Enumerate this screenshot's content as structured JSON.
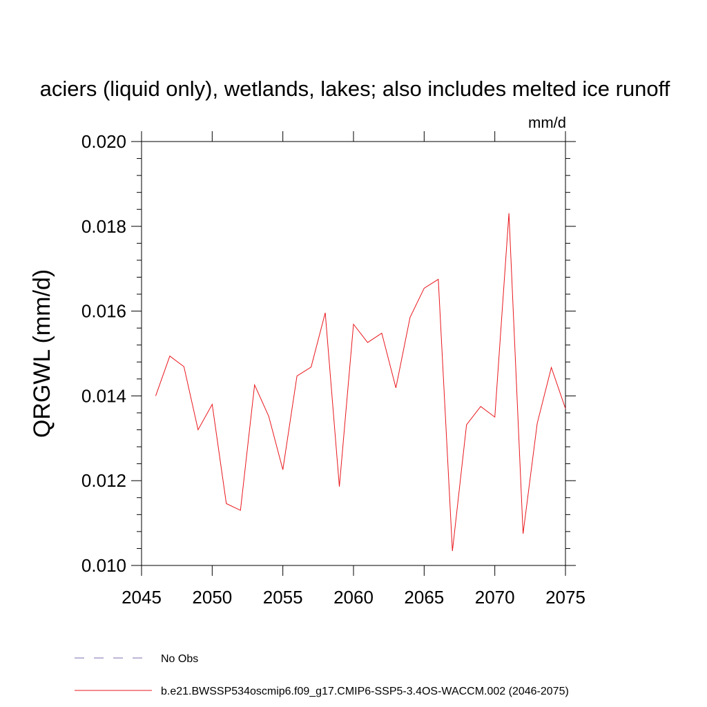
{
  "chart_data": {
    "type": "line",
    "title": "aciers (liquid only), wetlands, lakes; also includes melted ice runoff",
    "units": "mm/d",
    "ylabel": "QRGWL  (mm/d)",
    "xlabel": "",
    "xlim": [
      2045,
      2075
    ],
    "ylim": [
      0.01,
      0.02
    ],
    "x_ticks": [
      2045,
      2050,
      2055,
      2060,
      2065,
      2070,
      2075
    ],
    "x_tick_labels": [
      "2045",
      "2050",
      "2055",
      "2060",
      "2065",
      "2070",
      "2075"
    ],
    "y_ticks": [
      0.01,
      0.012,
      0.014,
      0.016,
      0.018,
      0.02
    ],
    "y_tick_labels": [
      "0.010",
      "0.012",
      "0.014",
      "0.016",
      "0.018",
      "0.020"
    ],
    "grid": false,
    "legend_position": "bottom",
    "series": [
      {
        "name": "b.e21.BWSSP534oscmip6.f09_g17.CMIP6-SSP5-3.4OS-WACCM.002 (2046-2075)",
        "color": "#e8151b",
        "style": "solid",
        "x": [
          2046,
          2047,
          2048,
          2049,
          2050,
          2051,
          2052,
          2053,
          2054,
          2055,
          2056,
          2057,
          2058,
          2059,
          2060,
          2061,
          2062,
          2063,
          2064,
          2065,
          2066,
          2067,
          2068,
          2069,
          2070,
          2071,
          2072,
          2073,
          2074,
          2075
        ],
        "values": [
          0.014,
          0.01494,
          0.01469,
          0.0132,
          0.0138,
          0.01146,
          0.0113,
          0.01426,
          0.01352,
          0.01226,
          0.01447,
          0.01468,
          0.01596,
          0.01186,
          0.01569,
          0.01526,
          0.01548,
          0.01419,
          0.01585,
          0.01654,
          0.01675,
          0.01034,
          0.01332,
          0.01375,
          0.0135,
          0.01831,
          0.01075,
          0.01335,
          0.01467,
          0.0137
        ]
      },
      {
        "name": "No Obs",
        "color": "#7b6bb0",
        "style": "dashed",
        "x": [],
        "values": []
      }
    ]
  }
}
